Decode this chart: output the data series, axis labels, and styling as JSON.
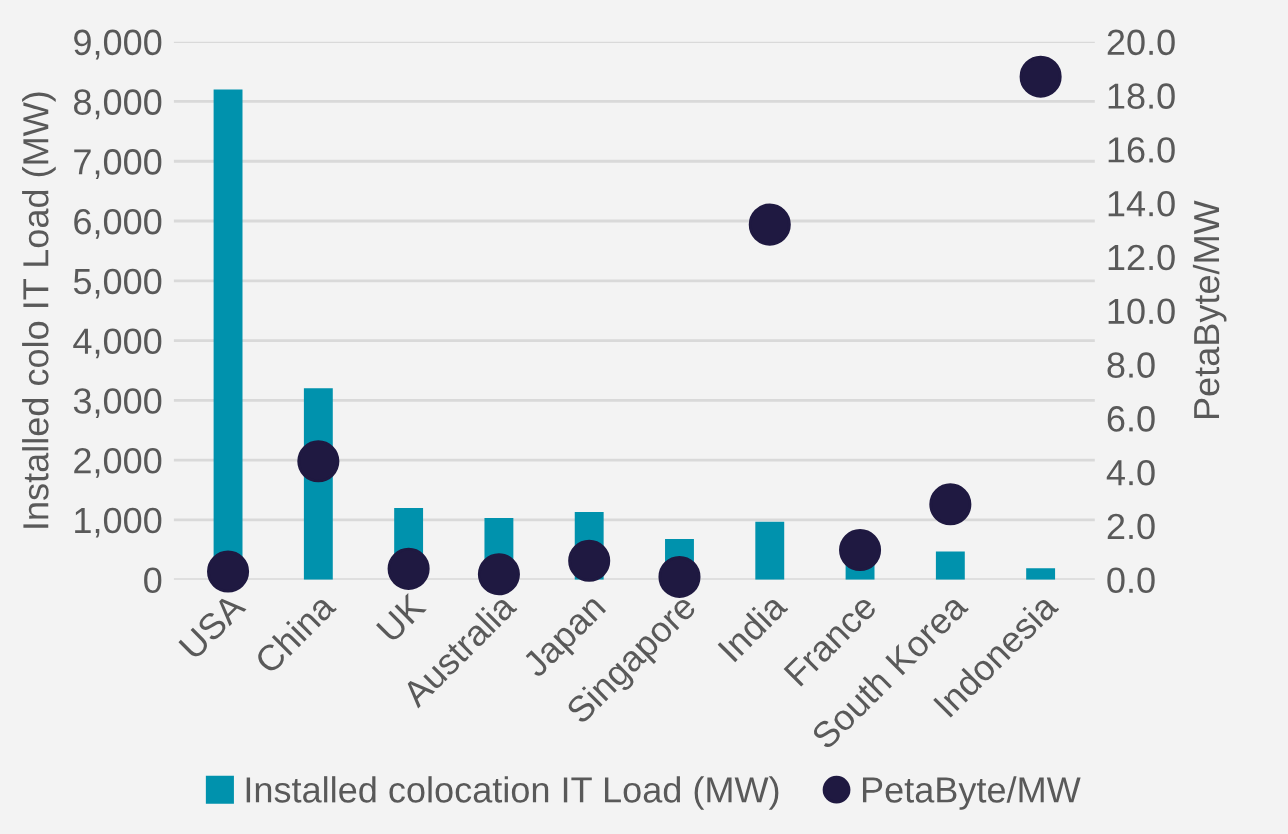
{
  "chart_data": {
    "type": "bar",
    "categories": [
      "USA",
      "China",
      "UK",
      "Australia",
      "Japan",
      "Singapore",
      "India",
      "France",
      "South Korea",
      "Indonesia"
    ],
    "series": [
      {
        "name": "Installed colocation IT Load (MW)",
        "color": "#0092ad",
        "values": [
          8200,
          3200,
          1200,
          1030,
          1130,
          680,
          970,
          300,
          470,
          190
        ]
      },
      {
        "name": "PetaByte/MW",
        "type": "scatter",
        "axis": "y2",
        "color": "#1f1941",
        "values": [
          0.3,
          4.4,
          0.4,
          0.2,
          0.7,
          0.1,
          13.2,
          1.1,
          2.8,
          18.7
        ]
      }
    ],
    "ylabel": "Installed colo IT Load (MW)",
    "y2label": "PetaByte/MW",
    "ylim": [
      0,
      9000
    ],
    "yticks": [
      {
        "value": 0,
        "label": "0"
      },
      {
        "value": 1000,
        "label": "1,000"
      },
      {
        "value": 2000,
        "label": "2,000"
      },
      {
        "value": 3000,
        "label": "3,000"
      },
      {
        "value": 4000,
        "label": "4,000"
      },
      {
        "value": 5000,
        "label": "5,000"
      },
      {
        "value": 6000,
        "label": "6,000"
      },
      {
        "value": 7000,
        "label": "7,000"
      },
      {
        "value": 8000,
        "label": "8,000"
      },
      {
        "value": 9000,
        "label": "9,000"
      }
    ],
    "y2lim": [
      0,
      20
    ],
    "y2ticks": [
      {
        "value": 0,
        "label": "0.0"
      },
      {
        "value": 2,
        "label": "2.0"
      },
      {
        "value": 4,
        "label": "4.0"
      },
      {
        "value": 6,
        "label": "6.0"
      },
      {
        "value": 8,
        "label": "8.0"
      },
      {
        "value": 10,
        "label": "10.0"
      },
      {
        "value": 12,
        "label": "12.0"
      },
      {
        "value": 14,
        "label": "14.0"
      },
      {
        "value": 16,
        "label": "16.0"
      },
      {
        "value": 18,
        "label": "18.0"
      },
      {
        "value": 20,
        "label": "20.0"
      }
    ],
    "grid": "y",
    "legend": "bottom",
    "marker": "circle"
  }
}
